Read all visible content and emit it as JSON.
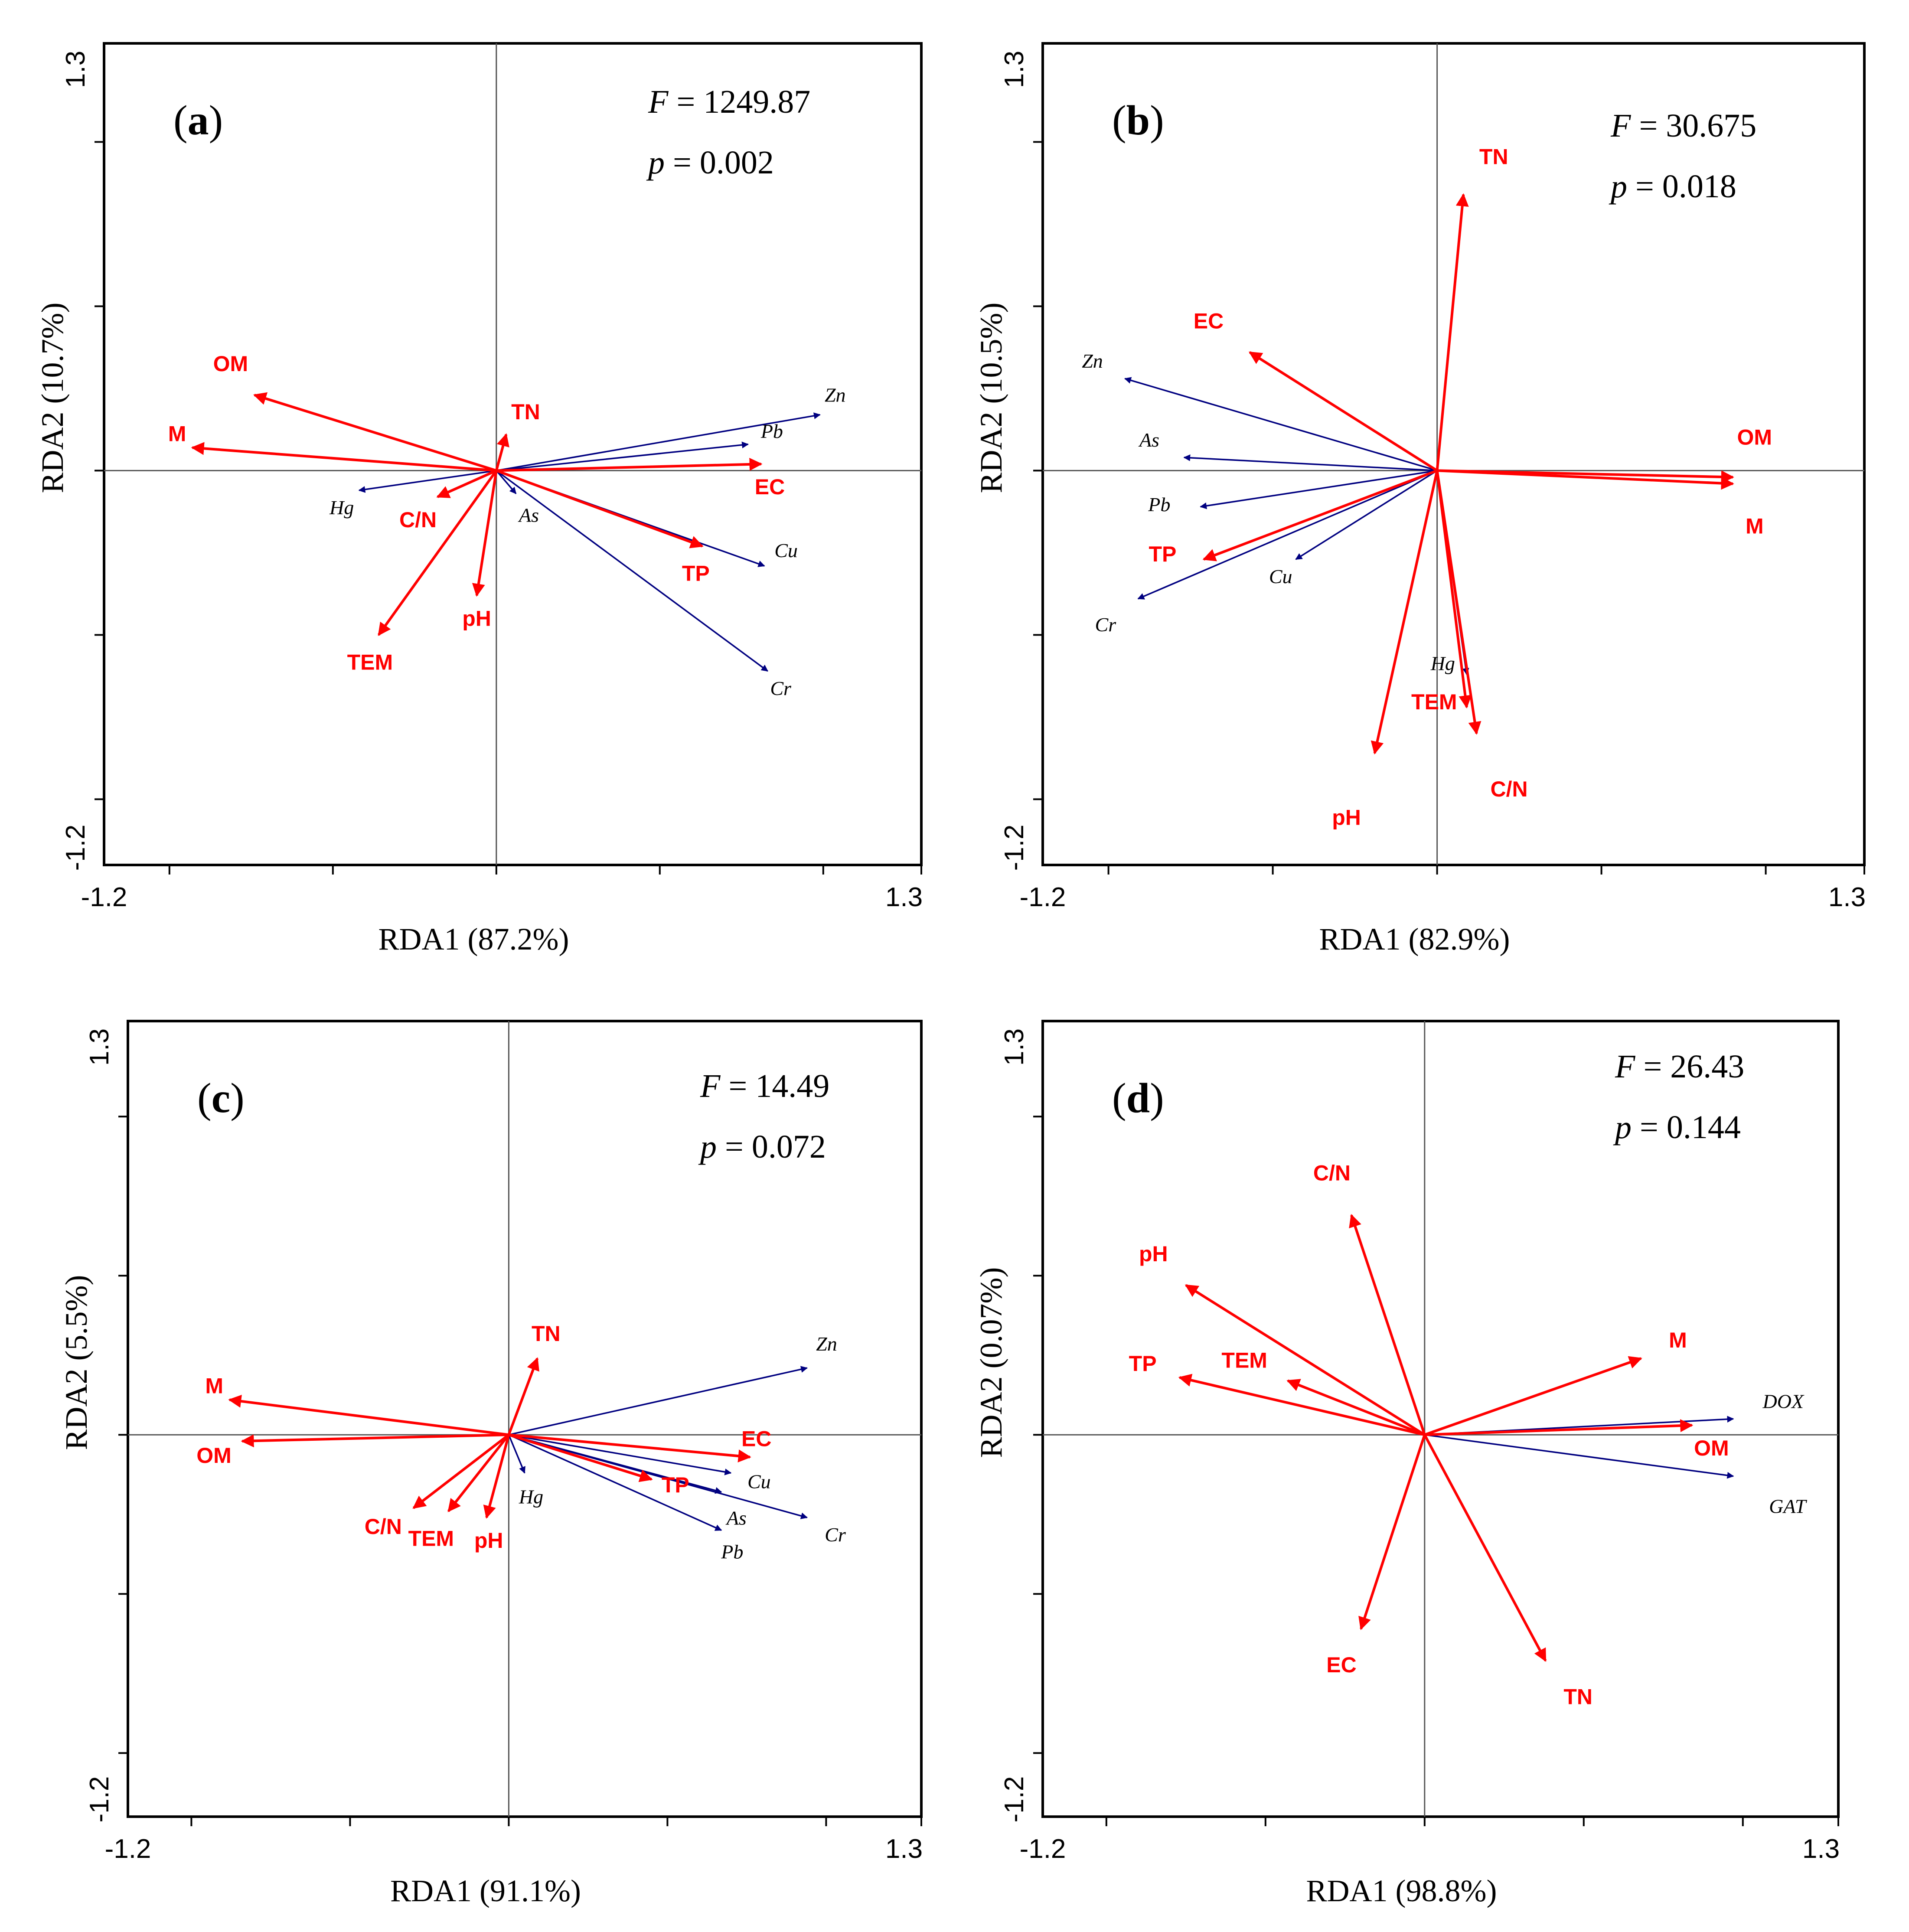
{
  "figure": {
    "colors": {
      "environment_arrow": "#ff0000",
      "species_arrow": "#000080",
      "frame": "#000000"
    }
  },
  "chart_data": [
    {
      "type": "scatter",
      "subtype": "rda-biplot",
      "panel_label": "a",
      "stat_f": "1249.87",
      "stat_p": "0.002",
      "xlabel": "RDA1 (87.2%)",
      "ylabel": "RDA2 (10.7%)",
      "xlim": [
        -1.2,
        1.3
      ],
      "ylim": [
        -1.2,
        1.3
      ],
      "tick_min_label": "-1.2",
      "tick_max_label": "1.3",
      "environment_vectors": [
        {
          "name": "OM",
          "x": -0.74,
          "y": 0.23
        },
        {
          "name": "M",
          "x": -0.93,
          "y": 0.07
        },
        {
          "name": "TN",
          "x": 0.03,
          "y": 0.11
        },
        {
          "name": "C/N",
          "x": -0.18,
          "y": -0.08
        },
        {
          "name": "pH",
          "x": -0.06,
          "y": -0.38
        },
        {
          "name": "TEM",
          "x": -0.36,
          "y": -0.5
        },
        {
          "name": "EC",
          "x": 0.81,
          "y": 0.02
        },
        {
          "name": "TP",
          "x": 0.63,
          "y": -0.23
        }
      ],
      "species_vectors": [
        {
          "name": "Zn",
          "x": 0.99,
          "y": 0.17
        },
        {
          "name": "Pb",
          "x": 0.77,
          "y": 0.08
        },
        {
          "name": "Hg",
          "x": -0.42,
          "y": -0.06
        },
        {
          "name": "As",
          "x": 0.06,
          "y": -0.07
        },
        {
          "name": "Cu",
          "x": 0.82,
          "y": -0.29
        },
        {
          "name": "Cr",
          "x": 0.83,
          "y": -0.61
        }
      ]
    },
    {
      "type": "scatter",
      "subtype": "rda-biplot",
      "panel_label": "b",
      "stat_f": "30.675",
      "stat_p": "0.018",
      "xlabel": "RDA1 (82.9%)",
      "ylabel": "RDA2 (10.5%)",
      "xlim": [
        -1.2,
        1.3
      ],
      "ylim": [
        -1.2,
        1.3
      ],
      "tick_min_label": "-1.2",
      "tick_max_label": "1.3",
      "environment_vectors": [
        {
          "name": "TN",
          "x": 0.08,
          "y": 0.84
        },
        {
          "name": "EC",
          "x": -0.57,
          "y": 0.36
        },
        {
          "name": "OM",
          "x": 0.9,
          "y": -0.02
        },
        {
          "name": "M",
          "x": 0.9,
          "y": -0.04
        },
        {
          "name": "TP",
          "x": -0.71,
          "y": -0.27
        },
        {
          "name": "TEM",
          "x": 0.09,
          "y": -0.72
        },
        {
          "name": "C/N",
          "x": 0.12,
          "y": -0.8
        },
        {
          "name": "pH",
          "x": -0.19,
          "y": -0.86
        }
      ],
      "species_vectors": [
        {
          "name": "Zn",
          "x": -0.95,
          "y": 0.28
        },
        {
          "name": "As",
          "x": -0.77,
          "y": 0.04
        },
        {
          "name": "Pb",
          "x": -0.72,
          "y": -0.11
        },
        {
          "name": "Cu",
          "x": -0.43,
          "y": -0.27
        },
        {
          "name": "Cr",
          "x": -0.91,
          "y": -0.39
        },
        {
          "name": "Hg",
          "x": 0.09,
          "y": -0.62
        }
      ]
    },
    {
      "type": "scatter",
      "subtype": "rda-biplot",
      "panel_label": "c",
      "stat_f": "14.49",
      "stat_p": "0.072",
      "xlabel": "RDA1 (91.1%)",
      "ylabel": "RDA2 (5.5%)",
      "xlim": [
        -1.2,
        1.3
      ],
      "ylim": [
        -1.2,
        1.3
      ],
      "tick_min_label": "-1.2",
      "tick_max_label": "1.3",
      "environment_vectors": [
        {
          "name": "TN",
          "x": 0.09,
          "y": 0.24
        },
        {
          "name": "M",
          "x": -0.88,
          "y": 0.11
        },
        {
          "name": "OM",
          "x": -0.84,
          "y": -0.02
        },
        {
          "name": "EC",
          "x": 0.76,
          "y": -0.07
        },
        {
          "name": "TP",
          "x": 0.45,
          "y": -0.14
        },
        {
          "name": "C/N",
          "x": -0.3,
          "y": -0.23
        },
        {
          "name": "TEM",
          "x": -0.19,
          "y": -0.24
        },
        {
          "name": "pH",
          "x": -0.07,
          "y": -0.26
        }
      ],
      "species_vectors": [
        {
          "name": "Zn",
          "x": 0.94,
          "y": 0.21
        },
        {
          "name": "Cu",
          "x": 0.7,
          "y": -0.12
        },
        {
          "name": "As",
          "x": 0.67,
          "y": -0.18
        },
        {
          "name": "Cr",
          "x": 0.94,
          "y": -0.26
        },
        {
          "name": "Pb",
          "x": 0.67,
          "y": -0.3
        },
        {
          "name": "Hg",
          "x": 0.05,
          "y": -0.12
        }
      ]
    },
    {
      "type": "scatter",
      "subtype": "rda-biplot",
      "panel_label": "d",
      "stat_f": "26.43",
      "stat_p": "0.144",
      "xlabel": "RDA1 (98.8%)",
      "ylabel": "RDA2 (0.07%)",
      "xlim": [
        -1.2,
        1.3
      ],
      "ylim": [
        -1.2,
        1.3
      ],
      "tick_min_label": "-1.2",
      "tick_max_label": "1.3",
      "environment_vectors": [
        {
          "name": "C/N",
          "x": -0.23,
          "y": 0.69
        },
        {
          "name": "pH",
          "x": -0.75,
          "y": 0.47
        },
        {
          "name": "TEM",
          "x": -0.43,
          "y": 0.17
        },
        {
          "name": "TP",
          "x": -0.77,
          "y": 0.18
        },
        {
          "name": "M",
          "x": 0.68,
          "y": 0.24
        },
        {
          "name": "OM",
          "x": 0.84,
          "y": 0.03
        },
        {
          "name": "EC",
          "x": -0.2,
          "y": -0.61
        },
        {
          "name": "TN",
          "x": 0.38,
          "y": -0.71
        }
      ],
      "species_vectors": [
        {
          "name": "DOX",
          "x": 0.97,
          "y": 0.05
        },
        {
          "name": "GAT",
          "x": 0.97,
          "y": -0.13
        }
      ]
    }
  ]
}
